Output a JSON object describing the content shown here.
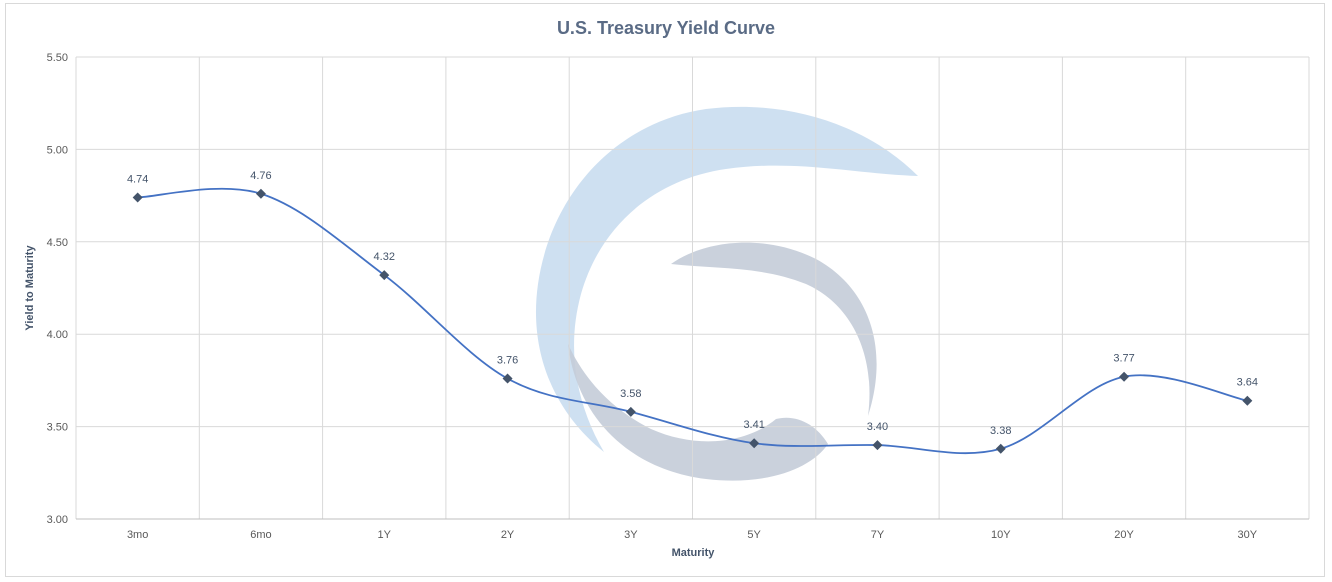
{
  "chart_data": {
    "type": "line",
    "title": "U.S. Treasury Yield Curve",
    "xlabel": "Maturity",
    "ylabel": "Yield to Maturity",
    "categories": [
      "3mo",
      "6mo",
      "1Y",
      "2Y",
      "3Y",
      "5Y",
      "7Y",
      "10Y",
      "20Y",
      "30Y"
    ],
    "series": [
      {
        "values": [
          4.74,
          4.76,
          4.32,
          3.76,
          3.58,
          3.41,
          3.4,
          3.38,
          3.77,
          3.64
        ],
        "labels": [
          "4.74",
          "4.76",
          "4.32",
          "3.76",
          "3.58",
          "3.41",
          "3.40",
          "3.38",
          "3.77",
          "3.64"
        ]
      }
    ],
    "y_ticks": [
      "3.00",
      "3.50",
      "4.00",
      "4.50",
      "5.00",
      "5.50"
    ],
    "ylim": [
      3.0,
      5.5
    ],
    "smoothed": true,
    "marker": "diamond",
    "grid": true,
    "legend": "none",
    "colors": {
      "line": "#4472c4",
      "marker": "#44546a",
      "grid": "#d9d9d9",
      "watermark_light": "#c9ddf0",
      "watermark_dark": "#c4ccd8"
    }
  }
}
